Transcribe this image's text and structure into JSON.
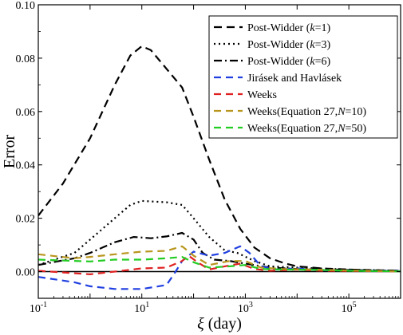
{
  "chart_data": {
    "type": "line",
    "title": "",
    "xlabel_symbol": "ξ",
    "xlabel_unit": "(day)",
    "ylabel": "Error",
    "xscale": "log",
    "xlim": [
      0.1,
      1000000
    ],
    "ylim": [
      -0.01,
      0.1
    ],
    "x_ticks": [
      {
        "value": 0.1,
        "base": "10",
        "exp": "-1"
      },
      {
        "value": 10,
        "base": "10",
        "exp": "1"
      },
      {
        "value": 1000,
        "base": "10",
        "exp": "3"
      },
      {
        "value": 100000,
        "base": "10",
        "exp": "5"
      }
    ],
    "y_ticks": [
      {
        "value": 0.0,
        "label": "0.00"
      },
      {
        "value": 0.02,
        "label": "0.02"
      },
      {
        "value": 0.04,
        "label": "0.04"
      },
      {
        "value": 0.06,
        "label": "0.06"
      },
      {
        "value": 0.08,
        "label": "0.08"
      },
      {
        "value": 0.1,
        "label": "0.10"
      }
    ],
    "reference_line": 0,
    "legend_position": "top-right",
    "series": [
      {
        "name_parts": [
          {
            "t": "Post-Widder ("
          },
          {
            "t": "k",
            "italic": true
          },
          {
            "t": "=1)"
          }
        ],
        "color": "#000000",
        "dash": "10,6",
        "points": [
          [
            0.1,
            0.021
          ],
          [
            0.3,
            0.033
          ],
          [
            1,
            0.05
          ],
          [
            3,
            0.07
          ],
          [
            6,
            0.081
          ],
          [
            10,
            0.0845
          ],
          [
            15,
            0.083
          ],
          [
            30,
            0.076
          ],
          [
            60,
            0.069
          ],
          [
            100,
            0.058
          ],
          [
            200,
            0.042
          ],
          [
            400,
            0.027
          ],
          [
            800,
            0.016
          ],
          [
            1500,
            0.009
          ],
          [
            3000,
            0.005
          ],
          [
            6000,
            0.003
          ],
          [
            10000,
            0.002
          ],
          [
            30000,
            0.0012
          ],
          [
            100000,
            0.0008
          ],
          [
            1000000,
            0.0003
          ]
        ]
      },
      {
        "name_parts": [
          {
            "t": "Post-Widder ("
          },
          {
            "t": "k",
            "italic": true
          },
          {
            "t": "=3)"
          }
        ],
        "color": "#000000",
        "dash": "2,4",
        "points": [
          [
            0.1,
            0.0025
          ],
          [
            0.5,
            0.007
          ],
          [
            1,
            0.012
          ],
          [
            3,
            0.02
          ],
          [
            6,
            0.025
          ],
          [
            10,
            0.0265
          ],
          [
            30,
            0.026
          ],
          [
            60,
            0.025
          ],
          [
            100,
            0.02
          ],
          [
            200,
            0.013
          ],
          [
            400,
            0.008
          ],
          [
            700,
            0.007
          ],
          [
            1500,
            0.004
          ],
          [
            3000,
            0.002
          ],
          [
            10000,
            0.0015
          ],
          [
            100000,
            0.0008
          ],
          [
            1000000,
            0.0003
          ]
        ]
      },
      {
        "name_parts": [
          {
            "t": "Post-Widder ("
          },
          {
            "t": "k",
            "italic": true
          },
          {
            "t": "=6)"
          }
        ],
        "color": "#000000",
        "dash": "10,4,2,4",
        "points": [
          [
            0.1,
            0.0025
          ],
          [
            0.5,
            0.005
          ],
          [
            1,
            0.007
          ],
          [
            3,
            0.011
          ],
          [
            7,
            0.013
          ],
          [
            15,
            0.0125
          ],
          [
            30,
            0.0132
          ],
          [
            60,
            0.0145
          ],
          [
            100,
            0.012
          ],
          [
            150,
            0.007
          ],
          [
            250,
            0.0045
          ],
          [
            500,
            0.004
          ],
          [
            1000,
            0.003
          ],
          [
            3000,
            0.0015
          ],
          [
            10000,
            0.001
          ],
          [
            100000,
            0.0006
          ],
          [
            1000000,
            0.0003
          ]
        ]
      },
      {
        "name_parts": [
          {
            "t": "Jirásek and Havlásek"
          }
        ],
        "color": "#1f3fe0",
        "dash": "9,6",
        "points": [
          [
            0.1,
            -0.002
          ],
          [
            0.5,
            -0.004
          ],
          [
            1,
            -0.0055
          ],
          [
            3,
            -0.0065
          ],
          [
            10,
            -0.0065
          ],
          [
            30,
            -0.005
          ],
          [
            45,
            0.0
          ],
          [
            60,
            0.004
          ],
          [
            100,
            0.0075
          ],
          [
            200,
            0.006
          ],
          [
            400,
            0.007
          ],
          [
            800,
            0.0095
          ],
          [
            1200,
            0.007
          ],
          [
            2000,
            0.002
          ],
          [
            4000,
            0.0008
          ],
          [
            10000,
            0.0012
          ],
          [
            30000,
            0.0005
          ],
          [
            1000000,
            0.0002
          ]
        ]
      },
      {
        "name_parts": [
          {
            "t": "Weeks"
          }
        ],
        "color": "#e02020",
        "dash": "9,6",
        "points": [
          [
            0.1,
            0.0003
          ],
          [
            1,
            -0.001
          ],
          [
            3,
            0.0
          ],
          [
            10,
            0.0012
          ],
          [
            30,
            0.0015
          ],
          [
            60,
            0.004
          ],
          [
            80,
            0.006
          ],
          [
            120,
            0.0035
          ],
          [
            200,
            0.0008
          ],
          [
            400,
            0.002
          ],
          [
            800,
            0.003
          ],
          [
            1500,
            0.001
          ],
          [
            3000,
            0.0003
          ],
          [
            10000,
            0.0008
          ],
          [
            30000,
            0.0003
          ],
          [
            1000000,
            0.0001
          ]
        ]
      },
      {
        "name_parts": [
          {
            "t": "Weeks(Equation 27,"
          },
          {
            "t": "N",
            "italic": true
          },
          {
            "t": "=10)"
          }
        ],
        "color": "#b8961e",
        "dash": "9,6",
        "points": [
          [
            0.1,
            0.0065
          ],
          [
            0.5,
            0.005
          ],
          [
            1,
            0.0055
          ],
          [
            3,
            0.0065
          ],
          [
            10,
            0.0075
          ],
          [
            30,
            0.0078
          ],
          [
            60,
            0.0095
          ],
          [
            100,
            0.006
          ],
          [
            200,
            0.0025
          ],
          [
            500,
            0.004
          ],
          [
            1000,
            0.004
          ],
          [
            2000,
            0.0015
          ],
          [
            5000,
            0.001
          ],
          [
            20000,
            0.0008
          ],
          [
            100000,
            0.0004
          ],
          [
            1000000,
            0.0001
          ]
        ]
      },
      {
        "name_parts": [
          {
            "t": "Weeks(Equation 27,"
          },
          {
            "t": "N",
            "italic": true
          },
          {
            "t": "=50)"
          }
        ],
        "color": "#22cc22",
        "dash": "9,6",
        "points": [
          [
            0.1,
            0.0045
          ],
          [
            1,
            0.0038
          ],
          [
            3,
            0.0045
          ],
          [
            10,
            0.0045
          ],
          [
            30,
            0.005
          ],
          [
            60,
            0.0055
          ],
          [
            100,
            0.0035
          ],
          [
            200,
            0.0015
          ],
          [
            500,
            0.002
          ],
          [
            1000,
            0.0025
          ],
          [
            2000,
            0.001
          ],
          [
            5000,
            0.0008
          ],
          [
            20000,
            0.0007
          ],
          [
            100000,
            0.0003
          ],
          [
            1000000,
            0.0001
          ]
        ]
      }
    ]
  }
}
